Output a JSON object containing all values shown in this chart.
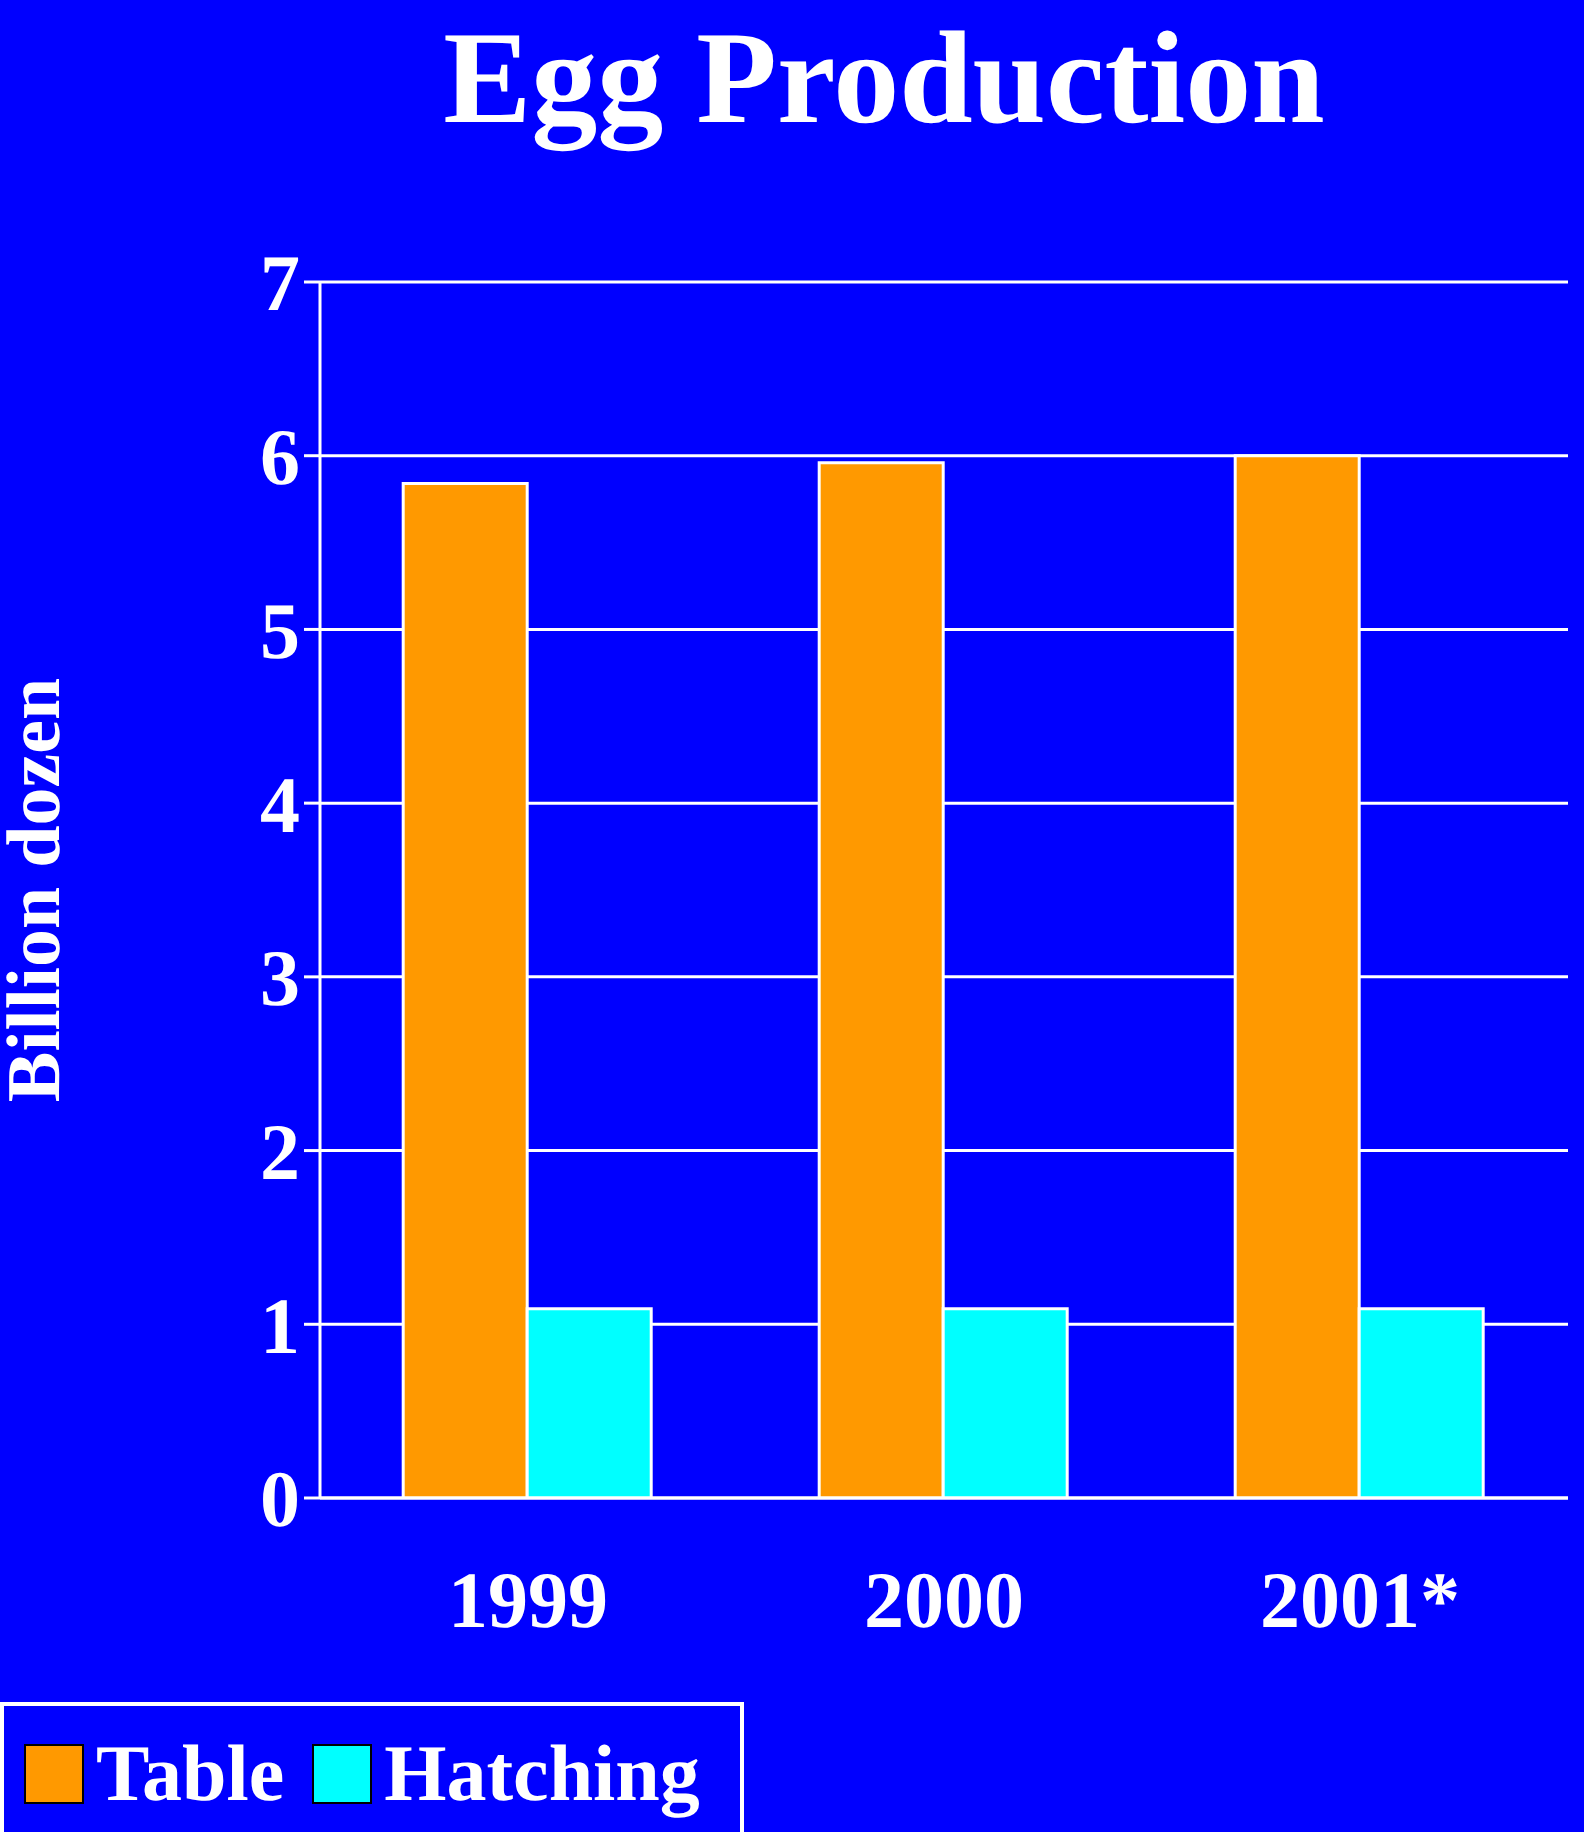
{
  "chart_data": {
    "type": "bar",
    "title": "Egg Production",
    "ylabel": "Billion dozen",
    "categories": [
      "1999",
      "2000",
      "2001*"
    ],
    "series": [
      {
        "name": "Table",
        "color": "#ff9900",
        "values": [
          5.84,
          5.96,
          6.0
        ]
      },
      {
        "name": "Hatching",
        "color": "#00ffff",
        "values": [
          1.09,
          1.09,
          1.09
        ]
      }
    ],
    "ylim": [
      0,
      7
    ],
    "yticks": [
      0,
      1,
      2,
      3,
      4,
      5,
      6,
      7
    ],
    "grid": "y",
    "legend": "bottom"
  }
}
